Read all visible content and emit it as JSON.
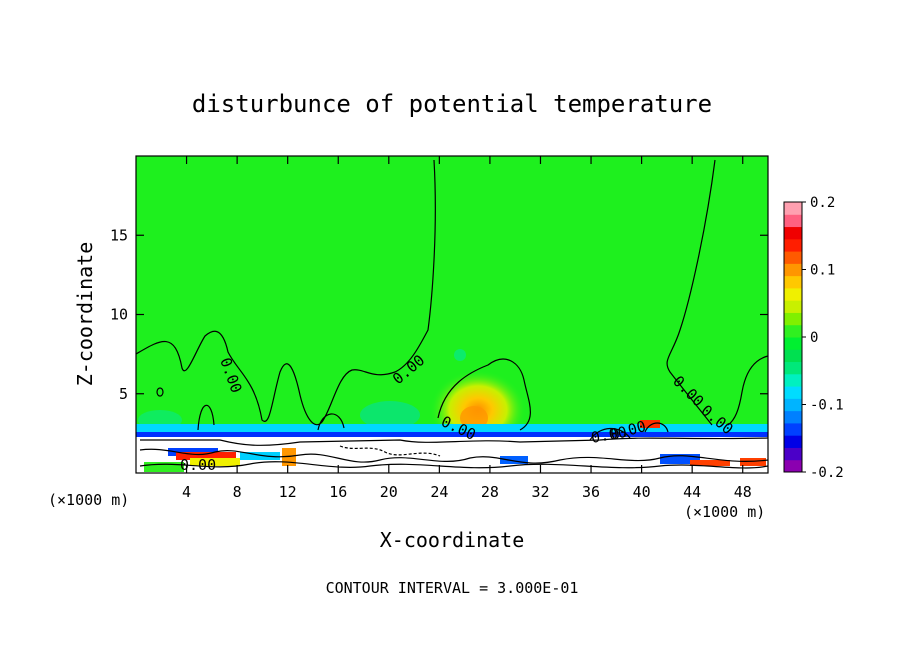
{
  "chart_data": {
    "type": "heatmap",
    "title": "disturbunce of potential temperature",
    "xlabel": "X-coordinate",
    "ylabel": "Z-coordinate",
    "x_unit_label": "(×1000 m)",
    "y_unit_label": "(×1000 m)",
    "xlim": [
      0,
      50
    ],
    "ylim": [
      0,
      20
    ],
    "x_ticks": [
      4,
      8,
      12,
      16,
      20,
      24,
      28,
      32,
      36,
      40,
      44,
      48
    ],
    "y_ticks": [
      5,
      10,
      15
    ],
    "colorbar": {
      "min": -0.2,
      "max": 0.2,
      "ticks": [
        -0.2,
        -0.1,
        0,
        0.1,
        0.2
      ],
      "tick_labels": [
        "-0.2",
        "-0.1",
        "0",
        "0.1",
        "0.2"
      ],
      "colors": [
        "#8b00b0",
        "#4b00c8",
        "#0000e6",
        "#0040ff",
        "#0080ff",
        "#00b4ff",
        "#00dcff",
        "#00f0c0",
        "#00e87a",
        "#00e050",
        "#00f030",
        "#30f020",
        "#80f000",
        "#c8f000",
        "#f0f000",
        "#ffc800",
        "#ff9600",
        "#ff5a00",
        "#ff1e00",
        "#f00000",
        "#ff6080",
        "#ffa0b0"
      ]
    },
    "contour_labels": [
      "0.00",
      "0.00",
      "0.00",
      "0.00",
      "0.00",
      "0.00",
      "0.00",
      "0.00"
    ],
    "warm_anomaly": {
      "x": 27,
      "z": 3.5,
      "peak_value": 0.15
    },
    "annotation": "CONTOUR INTERVAL = 3.000E-01"
  }
}
